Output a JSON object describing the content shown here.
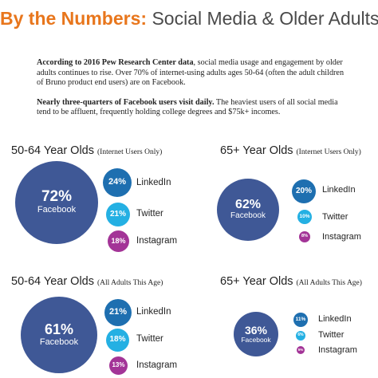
{
  "header": {
    "title_highlight": "By the Numbers:",
    "title_rest": "Social Media & Older Adults"
  },
  "intro": {
    "p1_bold": "According to 2016 Pew Research Center data",
    "p1_text": ", social media usage and engagement by older adults continues to rise. Over 70% of internet-using adults ages 50-64 (often the adult children of Bruno product end users) are on Facebook.",
    "p2_bold": "Nearly three-quarters of Facebook users visit daily.",
    "p2_text": " The heaviest users of all social media tend to be affluent, frequently holding college degrees and $75k+ incomes."
  },
  "colors": {
    "accent": "#e8761c",
    "facebook": "#3f5896",
    "linkedin": "#1e6fb0",
    "twitter": "#24b0e3",
    "instagram": "#a33497"
  },
  "panels": {
    "p1": {
      "age": "50-64 Year Olds",
      "scope": "(Internet Users Only)",
      "facebook": "72%",
      "linkedin": "24%",
      "twitter": "21%",
      "instagram": "18%"
    },
    "p2": {
      "age": "65+ Year Olds",
      "scope": "(Internet Users Only)",
      "facebook": "62%",
      "linkedin": "20%",
      "twitter": "10%",
      "instagram": "8%"
    },
    "p3": {
      "age": "50-64 Year Olds",
      "scope": "(All Adults This Age)",
      "facebook": "61%",
      "linkedin": "21%",
      "twitter": "18%",
      "instagram": "13%"
    },
    "p4": {
      "age": "65+ Year Olds",
      "scope": "(All Adults This Age)",
      "facebook": "36%",
      "linkedin": "11%",
      "twitter": "6%",
      "instagram": "5%"
    }
  },
  "labels": {
    "facebook": "Facebook",
    "linkedin": "LinkedIn",
    "twitter": "Twitter",
    "instagram": "Instagram"
  }
}
